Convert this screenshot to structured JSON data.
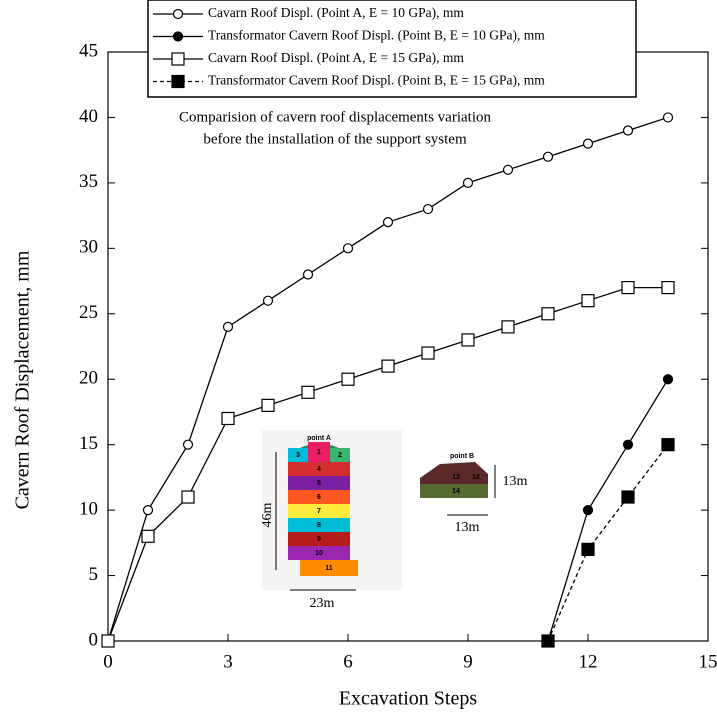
{
  "chart_data": {
    "type": "line",
    "xlabel": "Excavation Steps",
    "ylabel": "Cavern Roof Displacement, mm",
    "annotation": [
      "Comparision of cavern roof displacements variation",
      "before the installation of the support system"
    ],
    "x": [
      0,
      1,
      2,
      3,
      4,
      5,
      6,
      7,
      8,
      9,
      10,
      11,
      12,
      13,
      14
    ],
    "series": [
      {
        "name": "Cavarn Roof Displ. (Point A, E = 10 GPa), mm",
        "color": "#000000",
        "marker": "circle",
        "filled": false,
        "dashed": false,
        "values": [
          0,
          10,
          15,
          24,
          26,
          28,
          30,
          32,
          33,
          35,
          36,
          37,
          38,
          39,
          40
        ]
      },
      {
        "name": "Transformator Cavern Roof Displ. (Point B, E = 10 GPa), mm",
        "color": "#000000",
        "marker": "circle",
        "filled": true,
        "dashed": false,
        "values": [
          null,
          null,
          null,
          null,
          null,
          null,
          null,
          null,
          null,
          null,
          null,
          0,
          10,
          15,
          20
        ]
      },
      {
        "name": "Cavarn Roof Displ. (Point A, E = 15 GPa), mm",
        "color": "#000000",
        "marker": "square",
        "filled": false,
        "dashed": false,
        "values": [
          0,
          8,
          11,
          17,
          18,
          19,
          20,
          21,
          22,
          23,
          24,
          25,
          26,
          27,
          27
        ]
      },
      {
        "name": "Transformator Cavern Roof Displ. (Point B, E = 15 GPa), mm",
        "color": "#000000",
        "marker": "square",
        "filled": true,
        "dashed": true,
        "values": [
          null,
          null,
          null,
          null,
          null,
          null,
          null,
          null,
          null,
          null,
          null,
          0,
          7,
          11,
          15
        ]
      }
    ],
    "xlim": [
      0,
      15
    ],
    "xticks": [
      0,
      3,
      6,
      9,
      12,
      15
    ],
    "ylim": [
      0,
      45
    ],
    "yticks": [
      0,
      5,
      10,
      15,
      20,
      25,
      30,
      35,
      40,
      45
    ],
    "inset": {
      "left": {
        "point": "point A",
        "height": "46m",
        "width": "23m",
        "blocks": [
          "3",
          "1",
          "2",
          "4",
          "5",
          "6",
          "7",
          "8",
          "9",
          "10",
          "11"
        ]
      },
      "right": {
        "point": "point B",
        "height": "13m",
        "width": "13m",
        "blocks": [
          "13",
          "12",
          "14"
        ]
      }
    }
  }
}
